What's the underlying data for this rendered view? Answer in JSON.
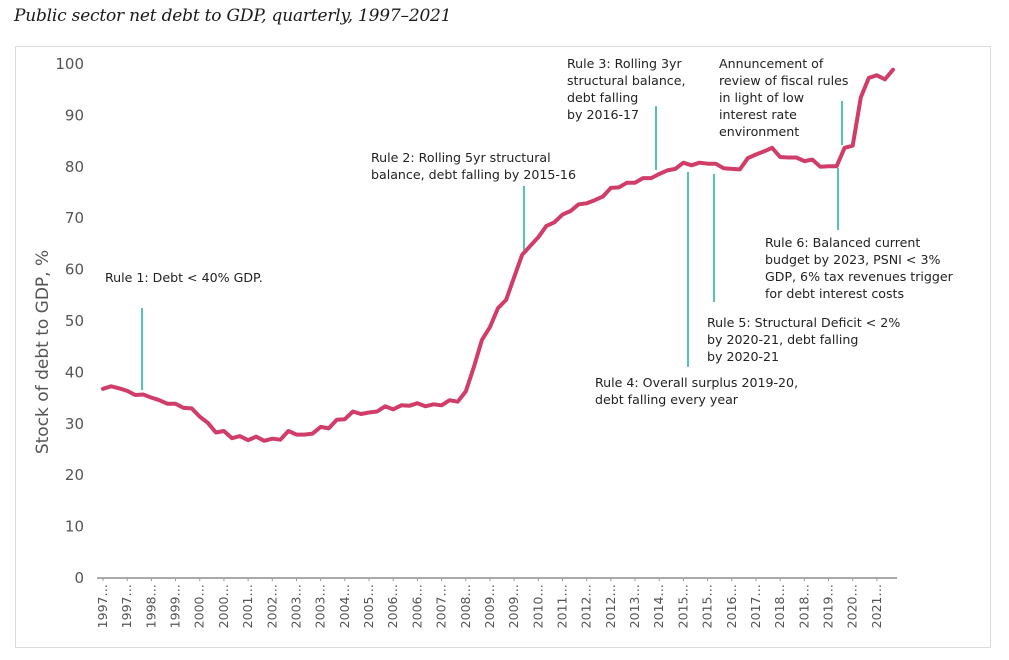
{
  "header": {
    "subtitle": "Public sector net debt to GDP, quarterly, 1997–2021"
  },
  "chart_data": {
    "type": "line",
    "title": "Public sector net debt to GDP, quarterly, 1997–2021",
    "xlabel": "",
    "ylabel": "Stock of debt to GDP, %",
    "ylim": [
      0,
      100
    ],
    "yticks": [
      0,
      10,
      20,
      30,
      40,
      50,
      60,
      70,
      80,
      90,
      100
    ],
    "grid": false,
    "legend": "none",
    "line_color": "#d03d68",
    "annotation_color": "#2bb5a0",
    "x_tick_labels": [
      "1997…",
      "1997…",
      "1998…",
      "1999…",
      "2000…",
      "2000…",
      "2001…",
      "2002…",
      "2003…",
      "2003…",
      "2004…",
      "2005…",
      "2006…",
      "2006…",
      "2007…",
      "2008…",
      "2009…",
      "2009…",
      "2010…",
      "2011…",
      "2012…",
      "2012…",
      "2013…",
      "2014…",
      "2015…",
      "2015…",
      "2016…",
      "2017…",
      "2018…",
      "2018…",
      "2019…",
      "2020…",
      "2021…"
    ],
    "x_tick_every": 3,
    "series": [
      {
        "name": "Public sector net debt to GDP",
        "values": [
          36.8,
          37.3,
          36.9,
          36.4,
          35.6,
          35.7,
          35.1,
          34.6,
          33.9,
          33.9,
          33.1,
          33.0,
          31.4,
          30.2,
          28.3,
          28.6,
          27.2,
          27.6,
          26.8,
          27.5,
          26.7,
          27.1,
          26.9,
          28.6,
          27.9,
          27.9,
          28.1,
          29.4,
          29.1,
          30.8,
          30.9,
          32.4,
          31.9,
          32.2,
          32.4,
          33.4,
          32.8,
          33.6,
          33.5,
          34.0,
          33.4,
          33.8,
          33.6,
          34.6,
          34.3,
          36.3,
          41.0,
          46.3,
          48.8,
          52.5,
          54.1,
          58.5,
          62.9,
          64.6,
          66.3,
          68.5,
          69.2,
          70.7,
          71.4,
          72.7,
          72.9,
          73.5,
          74.2,
          75.9,
          76.0,
          76.9,
          76.9,
          77.8,
          77.8,
          78.6,
          79.3,
          79.6,
          80.8,
          80.3,
          80.8,
          80.6,
          80.6,
          79.7,
          79.6,
          79.5,
          81.7,
          82.4,
          83.0,
          83.7,
          81.9,
          81.8,
          81.8,
          81.1,
          81.4,
          80.0,
          80.1,
          80.1,
          83.7,
          84.1,
          93.5,
          97.3,
          97.8,
          97.0,
          98.9
        ]
      }
    ],
    "x_start": "1997 Q1",
    "frequency": "quarterly",
    "annotations": [
      {
        "id": "rule1",
        "lines": [
          "Rule 1: Debt < 40% GDP."
        ],
        "marker_index": 2
      },
      {
        "id": "rule2",
        "lines": [
          "Rule 2: Rolling 5yr structural",
          "balance, debt falling by 2015-16"
        ],
        "marker_index": 52
      },
      {
        "id": "rule3",
        "lines": [
          "Rule 3: Rolling 3yr",
          "structural balance,",
          "debt falling",
          "by 2016-17"
        ],
        "marker_index": 69
      },
      {
        "id": "rule4",
        "lines": [
          "Rule 4: Overall surplus 2019-20,",
          "debt falling every year"
        ],
        "marker_index": 73
      },
      {
        "id": "rule5",
        "lines": [
          "Rule 5: Structural Deficit < 2%",
          "by 2020-21, debt falling",
          "by 2020-21"
        ],
        "marker_index": 76
      },
      {
        "id": "review",
        "lines": [
          "Annuncement of",
          "review of fiscal rules",
          "in light of low",
          "interest  rate",
          "environment"
        ],
        "marker_index": 92
      },
      {
        "id": "rule6",
        "lines": [
          "Rule 6: Balanced current",
          "budget by 2023, PSNI < 3%",
          "GDP, 6% tax revenues trigger",
          "for debt interest costs"
        ],
        "marker_index": 91
      }
    ]
  }
}
